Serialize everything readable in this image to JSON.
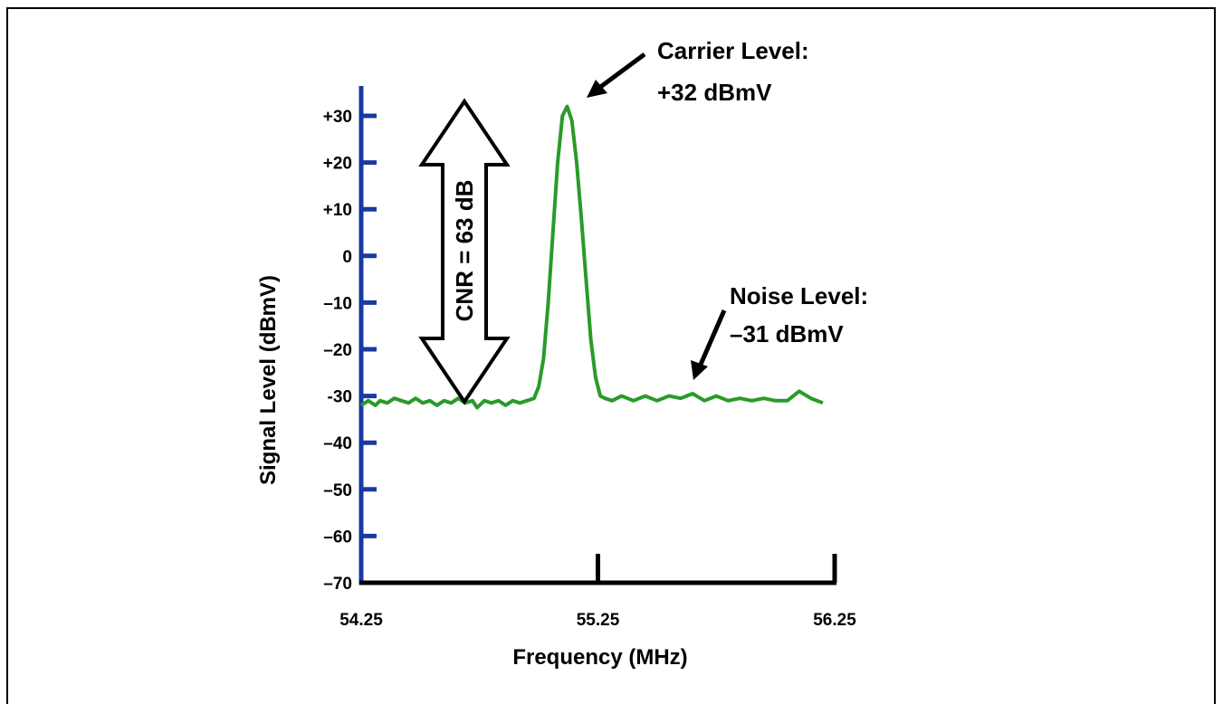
{
  "chart_data": {
    "type": "line",
    "xlabel": "Frequency (MHz)",
    "ylabel": "Signal Level (dBmV)",
    "xlim": [
      54.25,
      56.25
    ],
    "ylim": [
      -70,
      35
    ],
    "x_ticks": [
      "54.25",
      "55.25",
      "56.25"
    ],
    "y_ticks": [
      {
        "value": 30,
        "label": "+30"
      },
      {
        "value": 20,
        "label": "+20"
      },
      {
        "value": 10,
        "label": "+10"
      },
      {
        "value": 0,
        "label": "0"
      },
      {
        "value": -10,
        "label": "–10"
      },
      {
        "value": -20,
        "label": "–20"
      },
      {
        "value": -30,
        "label": "-30"
      },
      {
        "value": -40,
        "label": "–40"
      },
      {
        "value": -50,
        "label": "–50"
      },
      {
        "value": -60,
        "label": "–60"
      },
      {
        "value": -70,
        "label": "–70"
      }
    ],
    "series": [
      {
        "color": "#2a9a2a",
        "x": [
          54.25,
          54.28,
          54.31,
          54.33,
          54.36,
          54.39,
          54.42,
          54.45,
          54.48,
          54.51,
          54.54,
          54.57,
          54.6,
          54.63,
          54.66,
          54.69,
          54.72,
          54.74,
          54.77,
          54.8,
          54.83,
          54.86,
          54.89,
          54.92,
          54.95,
          54.98,
          55.0,
          55.02,
          55.04,
          55.06,
          55.08,
          55.1,
          55.12,
          55.14,
          55.16,
          55.18,
          55.2,
          55.22,
          55.24,
          55.26,
          55.28,
          55.31,
          55.35,
          55.4,
          55.45,
          55.5,
          55.55,
          55.6,
          55.65,
          55.7,
          55.75,
          55.8,
          55.85,
          55.9,
          55.95,
          56.0,
          56.05,
          56.1,
          56.15,
          56.2
        ],
        "y": [
          -32,
          -31,
          -32,
          -31,
          -31.5,
          -30.5,
          -31,
          -31.5,
          -30.5,
          -31.5,
          -31,
          -32,
          -31,
          -31.5,
          -30.5,
          -31.5,
          -31,
          -32.5,
          -31,
          -31.5,
          -31,
          -32,
          -31,
          -31.5,
          -31,
          -30.5,
          -28,
          -22,
          -10,
          5,
          20,
          30,
          32,
          29,
          20,
          8,
          -5,
          -18,
          -26,
          -30,
          -30.5,
          -31,
          -30,
          -31,
          -30,
          -31,
          -30,
          -30.5,
          -29.5,
          -31,
          -30,
          -31,
          -30.5,
          -31,
          -30.5,
          -31,
          -31,
          -29,
          -30.5,
          -31.5
        ]
      }
    ],
    "annotations": {
      "carrier_line1": "Carrier Level:",
      "carrier_line2": "+32 dBmV",
      "noise_line1": "Noise Level:",
      "noise_line2": "–31 dBmV",
      "cnr_label": "CNR = 63 dB",
      "carrier_level": 32,
      "noise_level": -31,
      "cnr_db": 63
    },
    "colors": {
      "y_axis": "#1a3aa0",
      "x_axis": "#000000",
      "trace": "#2a9a2a",
      "arrow_fill": "#ffffff",
      "arrow_stroke": "#000000"
    }
  }
}
